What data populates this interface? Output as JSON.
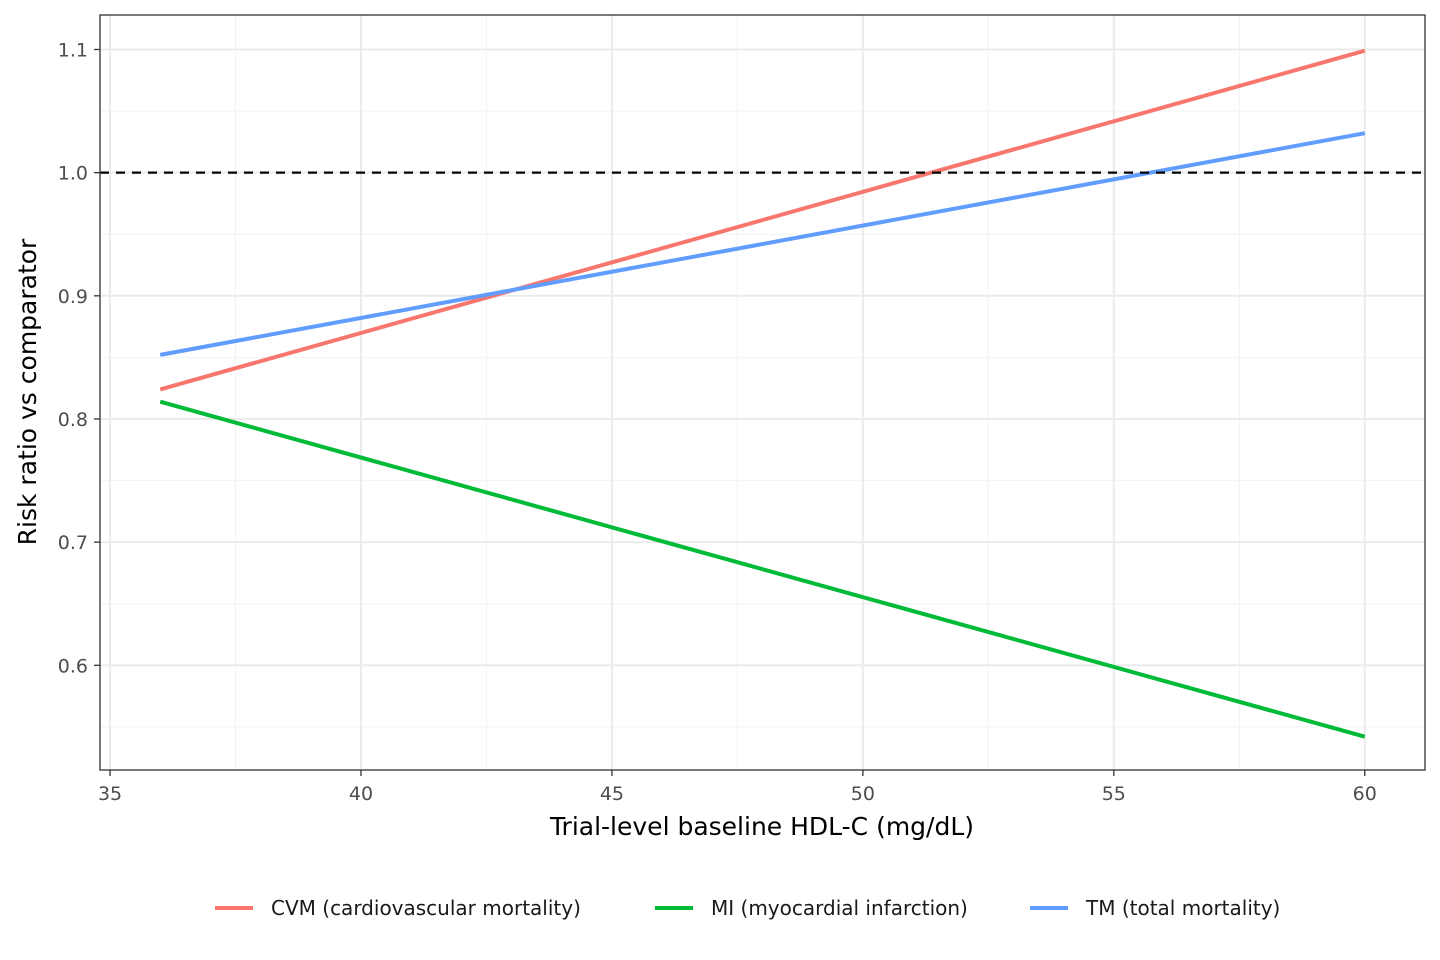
{
  "chart_data": {
    "type": "line",
    "title": "",
    "xlabel": "Trial-level baseline HDL-C (mg/dL)",
    "ylabel": "Risk ratio vs comparator",
    "xlim": [
      34.8,
      61.2
    ],
    "ylim": [
      0.515,
      1.128
    ],
    "x_ticks": [
      35,
      40,
      45,
      50,
      55,
      60
    ],
    "x_tick_labels": [
      "35",
      "40",
      "45",
      "50",
      "55",
      "60"
    ],
    "x_minor_ticks": [
      37.5,
      42.5,
      47.5,
      52.5,
      57.5
    ],
    "y_ticks": [
      0.6,
      0.7,
      0.8,
      0.9,
      1.0,
      1.1
    ],
    "y_tick_labels": [
      "0.6",
      "0.7",
      "0.8",
      "0.9",
      "1.0",
      "1.1"
    ],
    "y_minor_ticks": [
      0.55,
      0.65,
      0.75,
      0.85,
      0.95,
      1.05
    ],
    "grid": true,
    "legend_position": "bottom",
    "reference_line": {
      "y": 1.0,
      "style": "dashed",
      "color": "#000000"
    },
    "series": [
      {
        "name": "CVM (cardiovascular mortality)",
        "color": "#F8766D",
        "x": [
          36,
          60
        ],
        "y": [
          0.824,
          1.099
        ]
      },
      {
        "name": "MI (myocardial infarction)",
        "color": "#00BA38",
        "x": [
          36,
          60
        ],
        "y": [
          0.814,
          0.542
        ]
      },
      {
        "name": "TM (total mortality)",
        "color": "#619CFF",
        "x": [
          36,
          60
        ],
        "y": [
          0.852,
          1.032
        ]
      }
    ]
  }
}
